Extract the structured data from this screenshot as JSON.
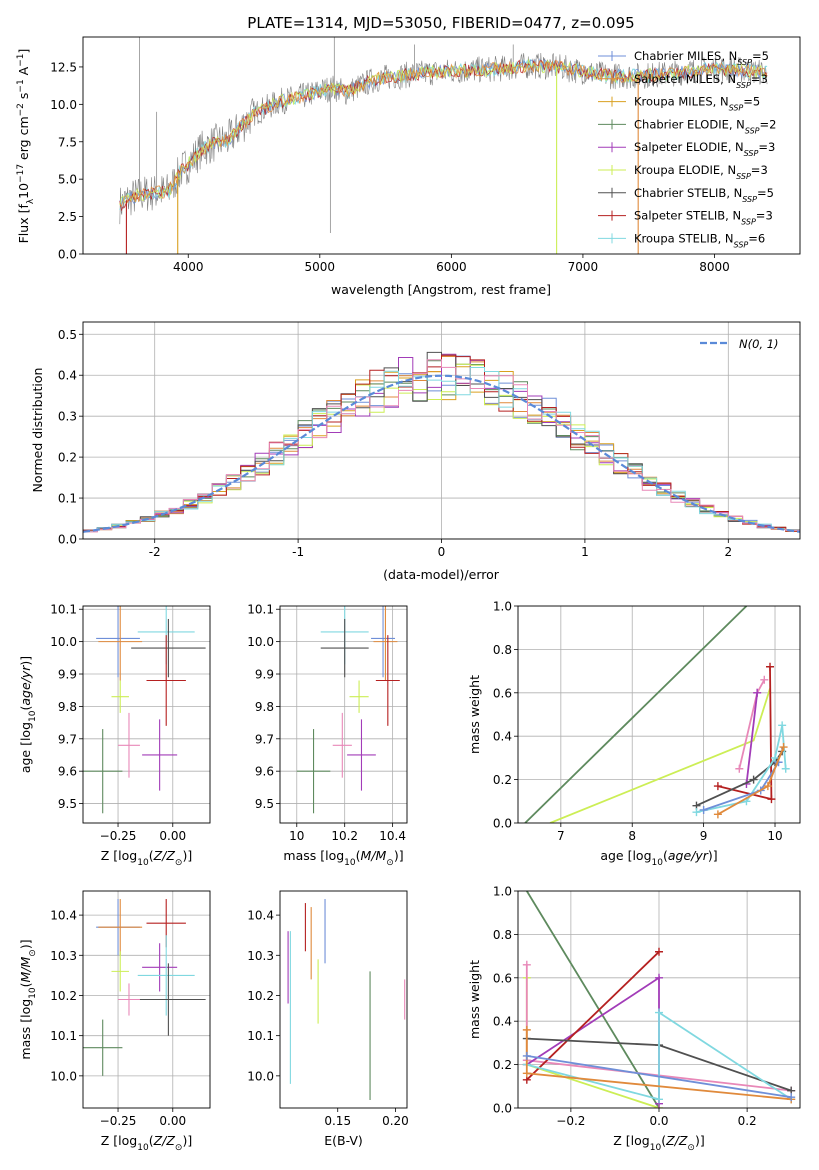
{
  "colors": {
    "Chabrier MILES": "#6f8fd8",
    "Salpeter MILES": "#e08a3c",
    "Kroupa MILES": "#d9a020",
    "Chabrier ELODIE": "#5e8a5e",
    "Salpeter ELODIE": "#a23cb8",
    "Kroupa ELODIE": "#ccee55",
    "Chabrier STELIB": "#505050",
    "Salpeter STELIB": "#b52020",
    "Kroupa STELIB": "#80d8e0",
    "pink": "#e888b8",
    "gaussian": "#5a8ad8"
  },
  "chart_data": [
    {
      "id": "spectrum",
      "type": "line",
      "title": "PLATE=1314, MJD=53050, FIBERID=0477, z=0.095",
      "xlabel": "wavelength [Angstrom, rest frame]",
      "ylabel": "Flux [f_λ 10^-17 erg cm^-2 s^-1 A^-1]",
      "xlim": [
        3200,
        8650
      ],
      "ylim": [
        0,
        14.5
      ],
      "xticks": [
        4000,
        5000,
        6000,
        7000,
        8000
      ],
      "yticks": [
        0.0,
        2.5,
        5.0,
        7.5,
        10.0,
        12.5
      ],
      "legend_position": "top-right",
      "grid": false,
      "series": [
        {
          "name": "Chabrier MILES",
          "nssp": "5"
        },
        {
          "name": "Salpeter MILES",
          "nssp": "3"
        },
        {
          "name": "Kroupa MILES",
          "nssp": "5"
        },
        {
          "name": "Chabrier ELODIE",
          "nssp": "2"
        },
        {
          "name": "Salpeter ELODIE",
          "nssp": "3"
        },
        {
          "name": "Kroupa ELODIE",
          "nssp": "3"
        },
        {
          "name": "Chabrier STELIB",
          "nssp": "5"
        },
        {
          "name": "Salpeter STELIB",
          "nssp": "3"
        },
        {
          "name": "Kroupa STELIB",
          "nssp": "6"
        }
      ],
      "continuum": [
        [
          3480,
          3.3
        ],
        [
          3550,
          3.7
        ],
        [
          3650,
          4.0
        ],
        [
          3750,
          4.1
        ],
        [
          3850,
          4.2
        ],
        [
          3950,
          5.6
        ],
        [
          4000,
          6.0
        ],
        [
          4100,
          7.0
        ],
        [
          4200,
          7.4
        ],
        [
          4300,
          7.6
        ],
        [
          4400,
          8.5
        ],
        [
          4500,
          9.4
        ],
        [
          4600,
          9.8
        ],
        [
          4700,
          10.2
        ],
        [
          4800,
          10.4
        ],
        [
          4900,
          10.6
        ],
        [
          5000,
          10.9
        ],
        [
          5100,
          11.1
        ],
        [
          5200,
          10.8
        ],
        [
          5300,
          11.2
        ],
        [
          5400,
          11.6
        ],
        [
          5500,
          11.8
        ],
        [
          5600,
          11.9
        ],
        [
          5800,
          12.1
        ],
        [
          6000,
          12.2
        ],
        [
          6200,
          12.3
        ],
        [
          6400,
          12.4
        ],
        [
          6600,
          12.6
        ],
        [
          6800,
          12.5
        ],
        [
          7000,
          12.2
        ],
        [
          7200,
          11.9
        ],
        [
          7400,
          11.9
        ],
        [
          7600,
          12.0
        ],
        [
          7800,
          12.2
        ],
        [
          8000,
          12.4
        ],
        [
          8200,
          12.3
        ],
        [
          8400,
          12.1
        ]
      ],
      "data_spikes": [
        [
          3630,
          14.5
        ],
        [
          3760,
          9.5
        ],
        [
          5080,
          1.4
        ],
        [
          5110,
          14.5
        ],
        [
          5720,
          14.0
        ],
        [
          6470,
          14.0
        ]
      ],
      "drop_lines": [
        {
          "x": 3530,
          "color": "Salpeter STELIB"
        },
        {
          "x": 3920,
          "color": "Kroupa MILES"
        },
        {
          "x": 6800,
          "color": "Kroupa ELODIE"
        },
        {
          "x": 7420,
          "color": "Salpeter MILES"
        }
      ]
    },
    {
      "id": "residuals",
      "type": "histogram",
      "xlabel": "(data-model)/error",
      "ylabel": "Normed distribution",
      "xlim": [
        -2.5,
        2.5
      ],
      "ylim": [
        0,
        0.53
      ],
      "xticks": [
        -2,
        -1,
        0,
        1,
        2
      ],
      "yticks": [
        0.0,
        0.1,
        0.2,
        0.3,
        0.4,
        0.5
      ],
      "grid": true,
      "legend_position": "top-right",
      "legend": "N(0, 1)",
      "bin_width": 0.1,
      "gaussian": {
        "mean": 0,
        "sigma": 1
      }
    },
    {
      "id": "age_vs_Z",
      "type": "errorbar",
      "xlabel": "Z [log10(Z/Z⊙)]",
      "ylabel": "age [log10(age/yr)]",
      "xlim": [
        -0.41,
        0.17
      ],
      "ylim": [
        9.44,
        10.11
      ],
      "xticks": [
        -0.25,
        0.0
      ],
      "tick_labels_x": [
        "−0.25",
        "0.00"
      ],
      "yticks": [
        9.5,
        9.6,
        9.7,
        9.8,
        9.9,
        10.0,
        10.1
      ],
      "grid": true,
      "points": [
        {
          "c": "Chabrier MILES",
          "x": -0.25,
          "y": 10.01,
          "xerr": 0.1,
          "yerr": 0.12
        },
        {
          "c": "Salpeter MILES",
          "x": -0.24,
          "y": 10.0,
          "xerr": 0.1,
          "yerr": 0.12
        },
        {
          "c": "Kroupa STELIB",
          "x": -0.03,
          "y": 10.03,
          "xerr": 0.13,
          "yerr": 0.1
        },
        {
          "c": "Chabrier STELIB",
          "x": -0.02,
          "y": 9.98,
          "xerr": 0.17,
          "yerr": 0.09
        },
        {
          "c": "Salpeter STELIB",
          "x": -0.03,
          "y": 9.88,
          "xerr": 0.09,
          "yerr": 0.14
        },
        {
          "c": "Kroupa ELODIE",
          "x": -0.24,
          "y": 9.83,
          "xerr": 0.04,
          "yerr": 0.05
        },
        {
          "c": "pink",
          "x": -0.2,
          "y": 9.68,
          "xerr": 0.05,
          "yerr": 0.1
        },
        {
          "c": "Salpeter ELODIE",
          "x": -0.06,
          "y": 9.65,
          "xerr": 0.08,
          "yerr": 0.11
        },
        {
          "c": "Chabrier ELODIE",
          "x": -0.32,
          "y": 9.6,
          "xerr": 0.09,
          "yerr": 0.13
        }
      ]
    },
    {
      "id": "age_vs_mass",
      "type": "errorbar",
      "xlabel": "mass [log10(M/M⊙)]",
      "ylabel": "",
      "xlim": [
        9.93,
        10.46
      ],
      "ylim": [
        9.44,
        10.11
      ],
      "xticks": [
        10.0,
        10.2,
        10.4
      ],
      "yticks": [
        9.5,
        9.6,
        9.7,
        9.8,
        9.9,
        10.0,
        10.1
      ],
      "grid": true,
      "points": [
        {
          "c": "Chabrier MILES",
          "x": 10.36,
          "y": 10.01,
          "xerr": 0.05,
          "yerr": 0.12
        },
        {
          "c": "Salpeter MILES",
          "x": 10.37,
          "y": 10.0,
          "xerr": 0.05,
          "yerr": 0.12
        },
        {
          "c": "Kroupa STELIB",
          "x": 10.2,
          "y": 10.03,
          "xerr": 0.1,
          "yerr": 0.1
        },
        {
          "c": "Chabrier STELIB",
          "x": 10.2,
          "y": 9.98,
          "xerr": 0.1,
          "yerr": 0.09
        },
        {
          "c": "Salpeter STELIB",
          "x": 10.38,
          "y": 9.88,
          "xerr": 0.05,
          "yerr": 0.14
        },
        {
          "c": "Kroupa ELODIE",
          "x": 10.26,
          "y": 9.83,
          "xerr": 0.04,
          "yerr": 0.05
        },
        {
          "c": "pink",
          "x": 10.19,
          "y": 9.68,
          "xerr": 0.04,
          "yerr": 0.1
        },
        {
          "c": "Salpeter ELODIE",
          "x": 10.27,
          "y": 9.65,
          "xerr": 0.06,
          "yerr": 0.11
        },
        {
          "c": "Chabrier ELODIE",
          "x": 10.07,
          "y": 9.6,
          "xerr": 0.07,
          "yerr": 0.13
        }
      ]
    },
    {
      "id": "mass_weight_vs_age",
      "type": "line",
      "xlabel": "age [log10(age/yr)]",
      "ylabel": "mass weight",
      "xlim": [
        6.4,
        10.35
      ],
      "ylim": [
        0,
        1
      ],
      "xticks": [
        7,
        8,
        9,
        10
      ],
      "yticks": [
        0.0,
        0.2,
        0.4,
        0.6,
        0.8,
        1.0
      ],
      "grid": true,
      "series": [
        {
          "c": "Chabrier ELODIE",
          "pts": [
            [
              6.5,
              0.0
            ],
            [
              9.6,
              1.0
            ]
          ],
          "marks": false
        },
        {
          "c": "Kroupa ELODIE",
          "pts": [
            [
              6.85,
              0.0
            ],
            [
              9.7,
              0.38
            ],
            [
              9.93,
              0.62
            ]
          ],
          "marks": false
        },
        {
          "c": "pink",
          "pts": [
            [
              9.5,
              0.25
            ],
            [
              9.75,
              0.6
            ],
            [
              9.85,
              0.66
            ]
          ],
          "marks": true
        },
        {
          "c": "Salpeter ELODIE",
          "pts": [
            [
              9.6,
              0.18
            ],
            [
              9.75,
              0.6
            ]
          ],
          "marks": true
        },
        {
          "c": "Salpeter STELIB",
          "pts": [
            [
              9.2,
              0.17
            ],
            [
              9.95,
              0.11
            ],
            [
              9.93,
              0.72
            ]
          ],
          "marks": true
        },
        {
          "c": "Chabrier STELIB",
          "pts": [
            [
              8.9,
              0.08
            ],
            [
              9.7,
              0.2
            ],
            [
              10.0,
              0.28
            ],
            [
              10.1,
              0.33
            ]
          ],
          "marks": true
        },
        {
          "c": "Kroupa STELIB",
          "pts": [
            [
              8.9,
              0.05
            ],
            [
              9.6,
              0.1
            ],
            [
              10.0,
              0.3
            ],
            [
              10.1,
              0.45
            ],
            [
              10.15,
              0.25
            ]
          ],
          "marks": true
        },
        {
          "c": "Chabrier MILES",
          "pts": [
            [
              9.0,
              0.06
            ],
            [
              9.8,
              0.15
            ],
            [
              10.05,
              0.28
            ]
          ],
          "marks": true
        },
        {
          "c": "Salpeter MILES",
          "pts": [
            [
              9.2,
              0.04
            ],
            [
              9.9,
              0.17
            ],
            [
              10.12,
              0.35
            ]
          ],
          "marks": true
        }
      ]
    },
    {
      "id": "mass_vs_Z",
      "type": "errorbar",
      "xlabel": "Z [log10(Z/Z⊙)]",
      "ylabel": "mass [log10(M/M⊙)]",
      "xlim": [
        -0.41,
        0.17
      ],
      "ylim": [
        9.92,
        10.46
      ],
      "xticks": [
        -0.25,
        0.0
      ],
      "tick_labels_x": [
        "−0.25",
        "0.00"
      ],
      "yticks": [
        10.0,
        10.1,
        10.2,
        10.3,
        10.4
      ],
      "grid": true,
      "points": [
        {
          "c": "Chabrier MILES",
          "x": -0.25,
          "y": 10.37,
          "xerr": 0.1,
          "yerr": 0.07
        },
        {
          "c": "Salpeter MILES",
          "x": -0.24,
          "y": 10.37,
          "xerr": 0.1,
          "yerr": 0.07
        },
        {
          "c": "Salpeter STELIB",
          "x": -0.03,
          "y": 10.38,
          "xerr": 0.09,
          "yerr": 0.06
        },
        {
          "c": "Salpeter ELODIE",
          "x": -0.06,
          "y": 10.27,
          "xerr": 0.08,
          "yerr": 0.06
        },
        {
          "c": "Kroupa ELODIE",
          "x": -0.24,
          "y": 10.26,
          "xerr": 0.04,
          "yerr": 0.05
        },
        {
          "c": "Kroupa STELIB",
          "x": -0.03,
          "y": 10.25,
          "xerr": 0.13,
          "yerr": 0.1
        },
        {
          "c": "Chabrier STELIB",
          "x": -0.02,
          "y": 10.19,
          "xerr": 0.17,
          "yerr": 0.09
        },
        {
          "c": "pink",
          "x": -0.2,
          "y": 10.19,
          "xerr": 0.05,
          "yerr": 0.04
        },
        {
          "c": "Chabrier ELODIE",
          "x": -0.32,
          "y": 10.07,
          "xerr": 0.09,
          "yerr": 0.07
        }
      ]
    },
    {
      "id": "mass_vs_ebv",
      "type": "errorbar",
      "xlabel": "E(B-V)",
      "ylabel": "",
      "xlim": [
        0.1,
        0.21
      ],
      "ylim": [
        9.92,
        10.46
      ],
      "xticks": [
        0.15,
        0.2
      ],
      "tick_labels_x": [
        "0.15",
        "0.20"
      ],
      "yticks": [
        10.0,
        10.1,
        10.2,
        10.3,
        10.4
      ],
      "grid": false,
      "points": [
        {
          "c": "Salpeter ELODIE",
          "x": 0.107,
          "y": 10.27,
          "yerr": 0.09
        },
        {
          "c": "Kroupa STELIB",
          "x": 0.109,
          "y": 10.17,
          "yerr": 0.19
        },
        {
          "c": "Salpeter STELIB",
          "x": 0.122,
          "y": 10.37,
          "yerr": 0.06
        },
        {
          "c": "Salpeter MILES",
          "x": 0.127,
          "y": 10.33,
          "yerr": 0.09
        },
        {
          "c": "Kroupa ELODIE",
          "x": 0.133,
          "y": 10.21,
          "yerr": 0.08
        },
        {
          "c": "Chabrier MILES",
          "x": 0.139,
          "y": 10.36,
          "yerr": 0.08
        },
        {
          "c": "Chabrier ELODIE",
          "x": 0.178,
          "y": 10.1,
          "yerr": 0.16
        },
        {
          "c": "pink",
          "x": 0.208,
          "y": 10.19,
          "yerr": 0.05
        }
      ]
    },
    {
      "id": "mass_weight_vs_Z",
      "type": "line",
      "xlabel": "Z [log10(Z/Z⊙)]",
      "ylabel": "mass weight",
      "xlim": [
        -0.32,
        0.32
      ],
      "ylim": [
        0,
        1
      ],
      "xticks": [
        -0.2,
        0.0,
        0.2
      ],
      "tick_labels_x": [
        "−0.2",
        "0.0",
        "0.2"
      ],
      "yticks": [
        0.0,
        0.2,
        0.4,
        0.6,
        0.8,
        1.0
      ],
      "grid": true,
      "series": [
        {
          "c": "Chabrier ELODIE",
          "pts": [
            [
              -0.3,
              1.0
            ],
            [
              0.0,
              0.0
            ]
          ],
          "marks": false
        },
        {
          "c": "Kroupa ELODIE",
          "pts": [
            [
              -0.3,
              0.6
            ],
            [
              -0.3,
              0.2
            ],
            [
              0.0,
              0.0
            ]
          ],
          "marks": true
        },
        {
          "c": "pink",
          "pts": [
            [
              -0.3,
              0.66
            ],
            [
              -0.3,
              0.22
            ],
            [
              0.3,
              0.08
            ]
          ],
          "marks": true
        },
        {
          "c": "Salpeter ELODIE",
          "pts": [
            [
              -0.3,
              0.2
            ],
            [
              0.0,
              0.6
            ],
            [
              0.0,
              0.02
            ]
          ],
          "marks": true
        },
        {
          "c": "Salpeter STELIB",
          "pts": [
            [
              -0.3,
              0.13
            ],
            [
              0.0,
              0.72
            ]
          ],
          "marks": true
        },
        {
          "c": "Chabrier STELIB",
          "pts": [
            [
              -0.3,
              0.32
            ],
            [
              0.0,
              0.29
            ],
            [
              0.3,
              0.08
            ]
          ],
          "marks": true
        },
        {
          "c": "Kroupa STELIB",
          "pts": [
            [
              -0.3,
              0.2
            ],
            [
              0.0,
              0.04
            ],
            [
              0.0,
              0.44
            ],
            [
              0.3,
              0.04
            ]
          ],
          "marks": true
        },
        {
          "c": "Salpeter MILES",
          "pts": [
            [
              -0.3,
              0.36
            ],
            [
              -0.3,
              0.16
            ],
            [
              0.3,
              0.04
            ]
          ],
          "marks": true
        },
        {
          "c": "Chabrier MILES",
          "pts": [
            [
              -0.3,
              0.24
            ],
            [
              0.3,
              0.05
            ]
          ],
          "marks": true
        }
      ]
    }
  ]
}
